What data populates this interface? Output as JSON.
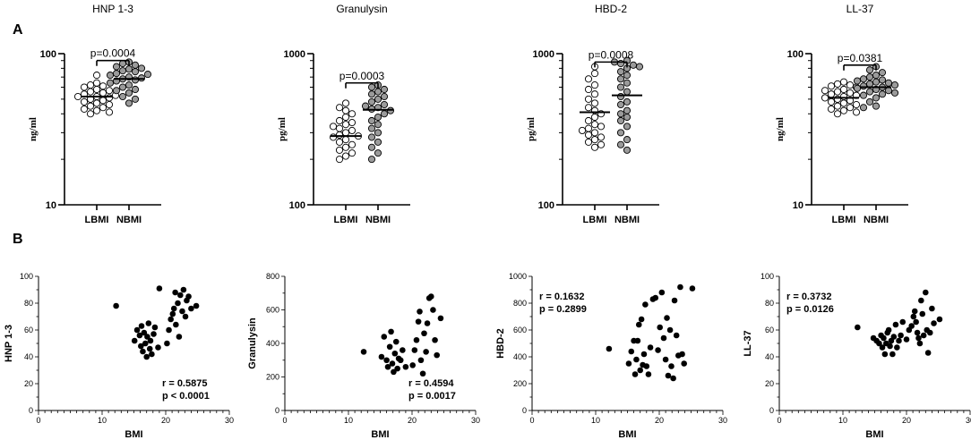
{
  "panels": {
    "a_label": "A",
    "b_label": "B"
  },
  "chart_data": [
    {
      "type": "scatter",
      "title": "HNP 1-3",
      "ylabel": "ng/ml",
      "yscale": "log",
      "ylim": [
        10,
        100
      ],
      "y_ticks": [
        "10",
        "100"
      ],
      "categories": [
        "LBMI",
        "NBMI"
      ],
      "series": [
        {
          "name": "LBMI",
          "fill": "#ffffff",
          "median": 52,
          "values": [
            72,
            64,
            62,
            61,
            60,
            58,
            57,
            56,
            55,
            54,
            53,
            52,
            52,
            51,
            50,
            49,
            48,
            47,
            46,
            45,
            44,
            43,
            42,
            41,
            40
          ]
        },
        {
          "name": "NBMI",
          "fill": "#9b9b9b",
          "median": 68,
          "values": [
            88,
            86,
            84,
            82,
            80,
            79,
            77,
            76,
            74,
            73,
            72,
            70,
            69,
            68,
            67,
            66,
            64,
            62,
            60,
            58,
            57,
            55,
            52,
            50,
            47
          ]
        }
      ],
      "comparison": {
        "text": "p=0.0004",
        "from": "LBMI",
        "to": "NBMI",
        "bar_value": 90
      }
    },
    {
      "type": "scatter",
      "title": "Granulysin",
      "ylabel": "pg/ml",
      "yscale": "log",
      "ylim": [
        100,
        1000
      ],
      "y_ticks": [
        "100",
        "1000"
      ],
      "categories": [
        "LBMI",
        "NBMI"
      ],
      "series": [
        {
          "name": "LBMI",
          "fill": "#ffffff",
          "median": 285,
          "values": [
            470,
            440,
            420,
            400,
            380,
            360,
            350,
            340,
            330,
            320,
            310,
            300,
            290,
            285,
            280,
            270,
            260,
            250,
            240,
            230,
            220,
            210,
            200
          ]
        },
        {
          "name": "NBMI",
          "fill": "#9b9b9b",
          "median": 425,
          "values": [
            620,
            600,
            580,
            560,
            540,
            520,
            500,
            480,
            460,
            450,
            440,
            430,
            420,
            400,
            380,
            360,
            340,
            320,
            300,
            280,
            260,
            240,
            220,
            200
          ]
        }
      ],
      "comparison": {
        "text": "p=0.0003",
        "from": "LBMI",
        "to": "NBMI",
        "bar_value": 640
      }
    },
    {
      "type": "scatter",
      "title": "HBD-2",
      "ylabel": "pg/ml",
      "yscale": "log",
      "ylim": [
        100,
        1000
      ],
      "y_ticks": [
        "100",
        "1000"
      ],
      "categories": [
        "LBMI",
        "NBMI"
      ],
      "series": [
        {
          "name": "LBMI",
          "fill": "#ffffff",
          "median": 410,
          "values": [
            820,
            740,
            680,
            620,
            580,
            540,
            500,
            470,
            440,
            420,
            400,
            380,
            360,
            340,
            330,
            320,
            310,
            300,
            290,
            280,
            270,
            260,
            250,
            240
          ]
        },
        {
          "name": "NBMI",
          "fill": "#9b9b9b",
          "median": 530,
          "values": [
            900,
            880,
            860,
            840,
            820,
            800,
            760,
            720,
            680,
            640,
            600,
            560,
            520,
            480,
            460,
            420,
            400,
            380,
            360,
            330,
            300,
            270,
            250,
            230
          ]
        }
      ],
      "comparison": {
        "text": "p=0.0008",
        "from": "LBMI",
        "to": "NBMI",
        "bar_value": 880
      }
    },
    {
      "type": "scatter",
      "title": "LL-37",
      "ylabel": "ng/ml",
      "yscale": "log",
      "ylim": [
        10,
        100
      ],
      "y_ticks": [
        "10",
        "100"
      ],
      "categories": [
        "LBMI",
        "NBMI"
      ],
      "series": [
        {
          "name": "LBMI",
          "fill": "#ffffff",
          "median": 51,
          "values": [
            65,
            63,
            62,
            61,
            60,
            58,
            57,
            56,
            55,
            54,
            53,
            52,
            51,
            50,
            49,
            48,
            47,
            46,
            45,
            44,
            43,
            42,
            41,
            40
          ]
        },
        {
          "name": "NBMI",
          "fill": "#9b9b9b",
          "median": 60,
          "values": [
            82,
            78,
            75,
            72,
            70,
            68,
            67,
            66,
            65,
            64,
            63,
            62,
            61,
            60,
            59,
            58,
            57,
            56,
            55,
            54,
            53,
            51,
            48,
            45,
            44
          ]
        }
      ],
      "comparison": {
        "text": "p=0.0381",
        "from": "LBMI",
        "to": "NBMI",
        "bar_value": 84
      }
    },
    {
      "type": "scatter",
      "title": "",
      "xlabel": "BMI",
      "ylabel": "HNP 1-3",
      "xlim": [
        0,
        30
      ],
      "ylim": [
        0,
        100
      ],
      "x_ticks": [
        0,
        10,
        20,
        30
      ],
      "y_ticks": [
        0,
        20,
        40,
        60,
        80,
        100
      ],
      "annotation": {
        "r": "r = 0.5875",
        "p": "p < 0.0001",
        "position": "bottom-right"
      },
      "points": [
        [
          12.2,
          78
        ],
        [
          15.1,
          52
        ],
        [
          15.5,
          60
        ],
        [
          15.9,
          56
        ],
        [
          16.1,
          48
        ],
        [
          16.2,
          63
        ],
        [
          16.4,
          44
        ],
        [
          16.6,
          58
        ],
        [
          16.8,
          50
        ],
        [
          17.0,
          40
        ],
        [
          17.1,
          55
        ],
        [
          17.3,
          65
        ],
        [
          17.5,
          46
        ],
        [
          17.6,
          52
        ],
        [
          17.8,
          42
        ],
        [
          18.1,
          57
        ],
        [
          18.3,
          62
        ],
        [
          18.8,
          47
        ],
        [
          19.0,
          91
        ],
        [
          20.2,
          50
        ],
        [
          20.5,
          60
        ],
        [
          20.8,
          68
        ],
        [
          21.1,
          72
        ],
        [
          21.3,
          76
        ],
        [
          21.5,
          88
        ],
        [
          21.6,
          64
        ],
        [
          21.9,
          80
        ],
        [
          22.1,
          55
        ],
        [
          22.3,
          86
        ],
        [
          22.6,
          74
        ],
        [
          22.8,
          90
        ],
        [
          23.1,
          70
        ],
        [
          23.3,
          82
        ],
        [
          23.6,
          85
        ],
        [
          24.0,
          76
        ],
        [
          24.8,
          78
        ]
      ]
    },
    {
      "type": "scatter",
      "title": "",
      "xlabel": "BMI",
      "ylabel": "Granulysin",
      "xlim": [
        0,
        30
      ],
      "ylim": [
        0,
        800
      ],
      "x_ticks": [
        0,
        10,
        20,
        30
      ],
      "y_ticks": [
        0,
        200,
        400,
        600,
        800
      ],
      "annotation": {
        "r": "r = 0.4594",
        "p": "p = 0.0017",
        "position": "bottom-right"
      },
      "points": [
        [
          12.4,
          350
        ],
        [
          15.2,
          320
        ],
        [
          15.6,
          440
        ],
        [
          16.0,
          300
        ],
        [
          16.2,
          260
        ],
        [
          16.5,
          380
        ],
        [
          16.7,
          470
        ],
        [
          16.9,
          280
        ],
        [
          17.1,
          230
        ],
        [
          17.3,
          340
        ],
        [
          17.5,
          410
        ],
        [
          17.7,
          250
        ],
        [
          17.9,
          310
        ],
        [
          18.2,
          300
        ],
        [
          18.5,
          360
        ],
        [
          19.0,
          260
        ],
        [
          20.1,
          270
        ],
        [
          20.4,
          360
        ],
        [
          20.7,
          420
        ],
        [
          21.0,
          530
        ],
        [
          21.2,
          590
        ],
        [
          21.4,
          300
        ],
        [
          21.7,
          220
        ],
        [
          21.9,
          460
        ],
        [
          22.2,
          350
        ],
        [
          22.4,
          520
        ],
        [
          22.7,
          670
        ],
        [
          23.0,
          680
        ],
        [
          23.3,
          600
        ],
        [
          23.6,
          420
        ],
        [
          23.9,
          330
        ],
        [
          24.5,
          550
        ]
      ]
    },
    {
      "type": "scatter",
      "title": "",
      "xlabel": "BMI",
      "ylabel": "HBD-2",
      "xlim": [
        0,
        30
      ],
      "ylim": [
        0,
        1000
      ],
      "x_ticks": [
        0,
        10,
        20,
        30
      ],
      "y_ticks": [
        0,
        200,
        400,
        600,
        800,
        1000
      ],
      "annotation": {
        "r": "r = 0.1632",
        "p": "p = 0.2899",
        "position": "top-left"
      },
      "points": [
        [
          12.1,
          460
        ],
        [
          15.2,
          350
        ],
        [
          15.6,
          440
        ],
        [
          16.0,
          520
        ],
        [
          16.2,
          270
        ],
        [
          16.4,
          380
        ],
        [
          16.6,
          520
        ],
        [
          16.8,
          640
        ],
        [
          17.0,
          300
        ],
        [
          17.2,
          680
        ],
        [
          17.4,
          340
        ],
        [
          17.6,
          420
        ],
        [
          17.8,
          790
        ],
        [
          18.0,
          330
        ],
        [
          18.3,
          270
        ],
        [
          18.6,
          470
        ],
        [
          19.0,
          830
        ],
        [
          19.4,
          840
        ],
        [
          19.8,
          450
        ],
        [
          20.1,
          620
        ],
        [
          20.4,
          880
        ],
        [
          20.7,
          540
        ],
        [
          21.0,
          380
        ],
        [
          21.2,
          690
        ],
        [
          21.4,
          260
        ],
        [
          21.7,
          600
        ],
        [
          21.9,
          330
        ],
        [
          22.2,
          240
        ],
        [
          22.4,
          820
        ],
        [
          22.7,
          560
        ],
        [
          23.0,
          410
        ],
        [
          23.3,
          920
        ],
        [
          23.6,
          420
        ],
        [
          23.9,
          350
        ],
        [
          25.2,
          910
        ]
      ]
    },
    {
      "type": "scatter",
      "title": "",
      "xlabel": "BMI",
      "ylabel": "LL-37",
      "xlim": [
        0,
        30
      ],
      "ylim": [
        0,
        100
      ],
      "x_ticks": [
        0,
        10,
        20,
        30
      ],
      "y_ticks": [
        0,
        20,
        40,
        60,
        80,
        100
      ],
      "annotation": {
        "r": "r = 0.3732",
        "p": "p = 0.0126",
        "position": "top-left"
      },
      "points": [
        [
          12.3,
          62
        ],
        [
          14.8,
          54
        ],
        [
          15.3,
          52
        ],
        [
          15.7,
          50
        ],
        [
          16.0,
          56
        ],
        [
          16.2,
          47
        ],
        [
          16.4,
          54
        ],
        [
          16.6,
          42
        ],
        [
          16.8,
          50
        ],
        [
          17.0,
          58
        ],
        [
          17.2,
          60
        ],
        [
          17.4,
          48
        ],
        [
          17.6,
          52
        ],
        [
          17.8,
          42
        ],
        [
          18.0,
          55
        ],
        [
          18.3,
          64
        ],
        [
          18.5,
          47
        ],
        [
          18.8,
          52
        ],
        [
          19.1,
          56
        ],
        [
          19.4,
          66
        ],
        [
          20.0,
          53
        ],
        [
          20.4,
          60
        ],
        [
          20.8,
          63
        ],
        [
          21.1,
          70
        ],
        [
          21.3,
          74
        ],
        [
          21.5,
          66
        ],
        [
          21.7,
          58
        ],
        [
          21.9,
          54
        ],
        [
          22.1,
          50
        ],
        [
          22.3,
          82
        ],
        [
          22.5,
          72
        ],
        [
          22.7,
          56
        ],
        [
          23.0,
          88
        ],
        [
          23.2,
          60
        ],
        [
          23.4,
          43
        ],
        [
          23.7,
          58
        ],
        [
          24.0,
          76
        ],
        [
          24.3,
          65
        ],
        [
          25.2,
          68
        ]
      ]
    }
  ]
}
